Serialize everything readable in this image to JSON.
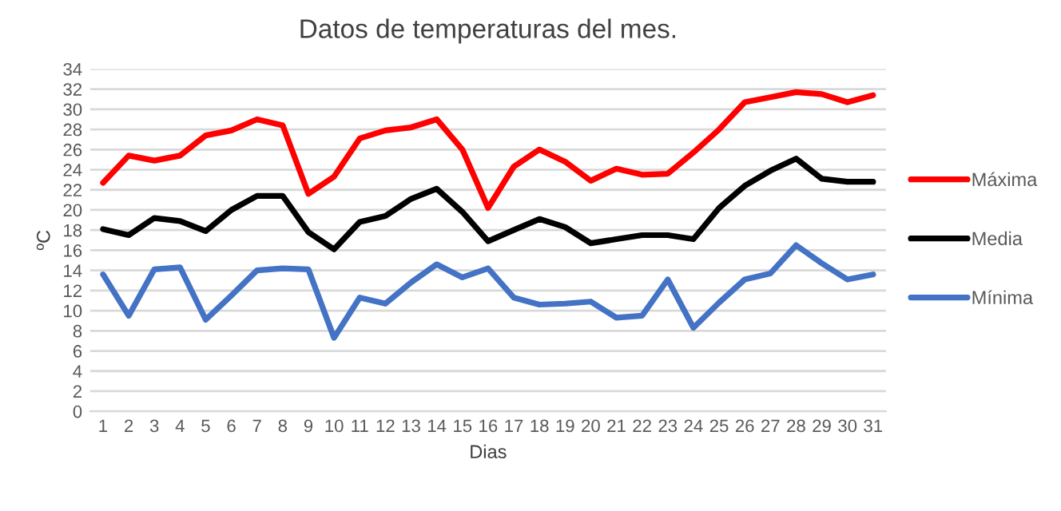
{
  "chart_data": {
    "type": "line",
    "title": "Datos de temperaturas del mes.",
    "xlabel": "Dias",
    "ylabel": "ºC",
    "categories": [
      "1",
      "2",
      "3",
      "4",
      "5",
      "6",
      "7",
      "8",
      "9",
      "10",
      "11",
      "12",
      "13",
      "14",
      "15",
      "16",
      "17",
      "18",
      "19",
      "20",
      "21",
      "22",
      "23",
      "24",
      "25",
      "26",
      "27",
      "28",
      "29",
      "30",
      "31"
    ],
    "series": [
      {
        "name": "Máxima",
        "color": "#ff0000",
        "values": [
          22.7,
          25.4,
          24.9,
          25.4,
          27.4,
          27.9,
          29.0,
          28.4,
          21.6,
          23.3,
          27.1,
          27.9,
          28.2,
          29.0,
          26.0,
          20.2,
          24.3,
          26.0,
          24.8,
          22.9,
          24.1,
          23.5,
          23.6,
          25.7,
          28.0,
          30.7,
          31.2,
          31.7,
          31.5,
          30.7,
          31.4
        ]
      },
      {
        "name": "Media",
        "color": "#000000",
        "values": [
          18.1,
          17.5,
          19.2,
          18.9,
          17.9,
          20.0,
          21.4,
          21.4,
          17.8,
          16.1,
          18.8,
          19.4,
          21.1,
          22.1,
          19.8,
          16.9,
          18.0,
          19.1,
          18.3,
          16.7,
          17.1,
          17.5,
          17.5,
          17.1,
          20.2,
          22.4,
          23.9,
          25.1,
          23.1,
          22.8,
          22.8
        ]
      },
      {
        "name": "Mínima",
        "color": "#4472c4",
        "values": [
          13.6,
          9.5,
          14.1,
          14.3,
          9.1,
          11.5,
          14.0,
          14.2,
          14.1,
          7.3,
          11.3,
          10.7,
          12.8,
          14.6,
          13.3,
          14.2,
          11.3,
          10.6,
          10.7,
          10.9,
          9.3,
          9.5,
          13.1,
          8.3,
          10.8,
          13.1,
          13.7,
          16.5,
          14.7,
          13.1,
          13.6
        ]
      }
    ],
    "ylim": [
      0,
      34
    ],
    "yticks": [
      0,
      2,
      4,
      6,
      8,
      10,
      12,
      14,
      16,
      18,
      20,
      22,
      24,
      26,
      28,
      30,
      32,
      34
    ],
    "grid": "y",
    "legend": "right",
    "marker": "none",
    "line_style": "solid"
  }
}
